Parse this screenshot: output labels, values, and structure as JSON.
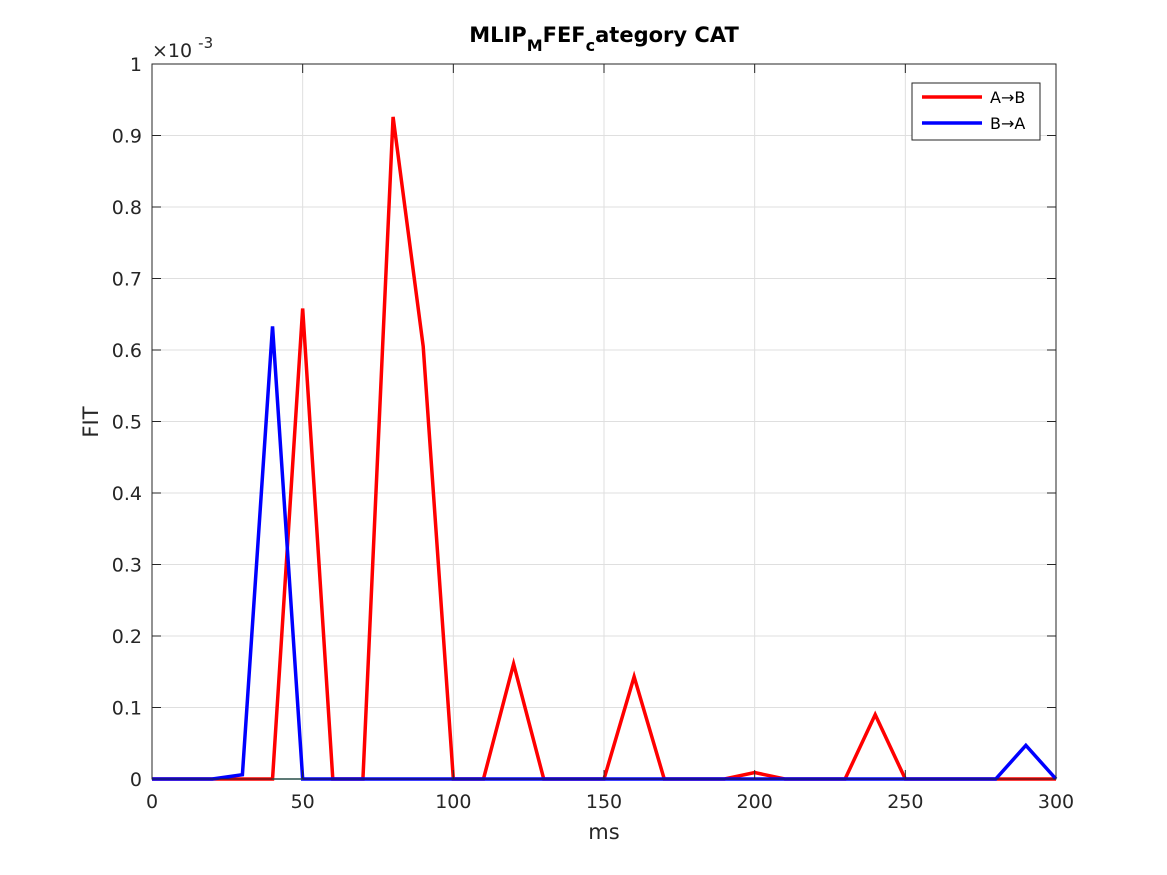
{
  "chart_data": {
    "type": "line",
    "title": {
      "parts": [
        {
          "text": "MLIP",
          "sub": false
        },
        {
          "text": "M",
          "sub": true
        },
        {
          "text": "FEF",
          "sub": false
        },
        {
          "text": "c",
          "sub": true
        },
        {
          "text": "ategory CAT",
          "sub": false
        }
      ]
    },
    "xlabel": "ms",
    "ylabel": "FIT",
    "y_exponent": "×10-3",
    "xlim": [
      0,
      300
    ],
    "ylim": [
      0,
      1
    ],
    "x_ticks": [
      0,
      50,
      100,
      150,
      200,
      250,
      300
    ],
    "y_ticks": [
      0,
      0.1,
      0.2,
      0.3,
      0.4,
      0.5,
      0.6,
      0.7,
      0.8,
      0.9,
      1
    ],
    "y_tick_labels": [
      "0",
      "0.1",
      "0.2",
      "0.3",
      "0.4",
      "0.5",
      "0.6",
      "0.7",
      "0.8",
      "0.9",
      "1"
    ],
    "x_tick_labels": [
      "0",
      "50",
      "100",
      "150",
      "200",
      "250",
      "300"
    ],
    "grid": true,
    "legend_position": "top-right",
    "x": [
      0,
      10,
      20,
      30,
      40,
      50,
      60,
      70,
      80,
      90,
      100,
      110,
      120,
      130,
      140,
      150,
      160,
      170,
      180,
      190,
      200,
      210,
      220,
      230,
      240,
      250,
      260,
      270,
      280,
      290,
      300
    ],
    "series": [
      {
        "name": "A→B",
        "color": "#ff0000",
        "values": [
          0,
          0,
          0,
          0,
          0,
          0.658,
          0,
          0,
          0.926,
          0.605,
          0,
          0,
          0.161,
          0,
          0,
          0,
          0.143,
          0,
          0,
          0,
          0.009,
          0,
          0,
          0,
          0.09,
          0,
          0,
          0,
          0,
          0,
          0
        ]
      },
      {
        "name": "B→A",
        "color": "#0000ff",
        "values": [
          0,
          0,
          0,
          0.006,
          0.633,
          0,
          0,
          0,
          0,
          0,
          0,
          0,
          0,
          0,
          0,
          0,
          0,
          0,
          0,
          0,
          0,
          0,
          0,
          0,
          0,
          0,
          0,
          0,
          0,
          0.047,
          0
        ]
      }
    ]
  }
}
